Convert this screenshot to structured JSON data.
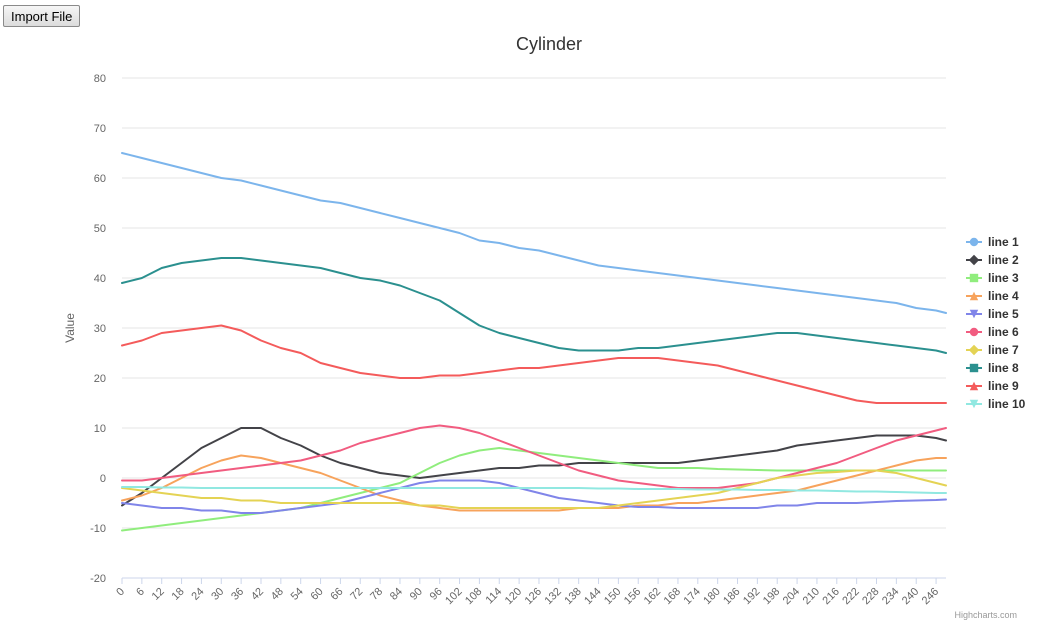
{
  "toolbar": {
    "import_label": "Import File"
  },
  "credits": "Highcharts.com",
  "chart_data": {
    "type": "line",
    "title": "Cylinder",
    "xlabel": "",
    "ylabel": "Value",
    "xlim": [
      0,
      249
    ],
    "ylim": [
      -20,
      80
    ],
    "yticks": [
      -20,
      -10,
      0,
      10,
      20,
      30,
      40,
      50,
      60,
      70,
      80
    ],
    "xticks": [
      0,
      6,
      12,
      18,
      24,
      30,
      36,
      42,
      48,
      54,
      60,
      66,
      72,
      78,
      84,
      90,
      96,
      102,
      108,
      114,
      120,
      126,
      132,
      138,
      144,
      150,
      156,
      162,
      168,
      174,
      180,
      186,
      192,
      198,
      204,
      210,
      216,
      222,
      228,
      234,
      240,
      246
    ],
    "grid": true,
    "legend": "right",
    "series": [
      {
        "name": "line 1",
        "color": "#7cb5ec",
        "marker": "circle",
        "x": [
          0,
          6,
          12,
          18,
          24,
          30,
          36,
          42,
          48,
          54,
          60,
          66,
          72,
          78,
          84,
          90,
          96,
          102,
          108,
          114,
          120,
          126,
          132,
          138,
          144,
          150,
          156,
          162,
          168,
          174,
          180,
          186,
          192,
          198,
          204,
          210,
          216,
          222,
          228,
          234,
          240,
          246,
          249
        ],
        "y": [
          65,
          64,
          63,
          62,
          61,
          60,
          59.5,
          58.5,
          57.5,
          56.5,
          55.5,
          55,
          54,
          53,
          52,
          51,
          50,
          49,
          47.5,
          47,
          46,
          45.5,
          44.5,
          43.5,
          42.5,
          42,
          41.5,
          41,
          40.5,
          40,
          39.5,
          39,
          38.5,
          38,
          37.5,
          37,
          36.5,
          36,
          35.5,
          35,
          34,
          33.5,
          33
        ]
      },
      {
        "name": "line 2",
        "color": "#434348",
        "marker": "diamond",
        "x": [
          0,
          6,
          12,
          18,
          24,
          30,
          36,
          42,
          48,
          54,
          60,
          66,
          72,
          78,
          84,
          90,
          96,
          102,
          108,
          114,
          120,
          126,
          132,
          138,
          144,
          150,
          156,
          162,
          168,
          174,
          180,
          186,
          192,
          198,
          204,
          210,
          216,
          222,
          228,
          234,
          240,
          246,
          249
        ],
        "y": [
          -5.5,
          -3,
          0,
          3,
          6,
          8,
          10,
          10,
          8,
          6.5,
          4.5,
          3,
          2,
          1,
          0.5,
          0,
          0.5,
          1,
          1.5,
          2,
          2,
          2.5,
          2.5,
          3,
          3,
          3,
          3,
          3,
          3,
          3.5,
          4,
          4.5,
          5,
          5.5,
          6.5,
          7,
          7.5,
          8,
          8.5,
          8.5,
          8.5,
          8,
          7.5
        ]
      },
      {
        "name": "line 3",
        "color": "#90ed7d",
        "marker": "square",
        "x": [
          0,
          6,
          12,
          18,
          24,
          30,
          36,
          42,
          48,
          54,
          60,
          66,
          72,
          78,
          84,
          90,
          96,
          102,
          108,
          114,
          120,
          126,
          132,
          138,
          144,
          150,
          156,
          162,
          168,
          174,
          180,
          186,
          192,
          198,
          204,
          210,
          216,
          222,
          228,
          234,
          240,
          246,
          249
        ],
        "y": [
          -10.5,
          -10,
          -9.5,
          -9,
          -8.5,
          -8,
          -7.5,
          -7,
          -6.5,
          -6,
          -5,
          -4,
          -3,
          -2,
          -1,
          1,
          3,
          4.5,
          5.5,
          6,
          5.5,
          5,
          4.5,
          4,
          3.5,
          3,
          2.5,
          2,
          2,
          2,
          1.8,
          1.7,
          1.6,
          1.5,
          1.5,
          1.5,
          1.5,
          1.5,
          1.5,
          1.5,
          1.5,
          1.5,
          1.5
        ]
      },
      {
        "name": "line 4",
        "color": "#f7a35c",
        "marker": "triangle",
        "x": [
          0,
          6,
          12,
          18,
          24,
          30,
          36,
          42,
          48,
          54,
          60,
          66,
          72,
          78,
          84,
          90,
          96,
          102,
          108,
          114,
          120,
          126,
          132,
          138,
          144,
          150,
          156,
          162,
          168,
          174,
          180,
          186,
          192,
          198,
          204,
          210,
          216,
          222,
          228,
          234,
          240,
          246,
          249
        ],
        "y": [
          -4.5,
          -3.5,
          -2,
          0,
          2,
          3.5,
          4.5,
          4,
          3,
          2,
          1,
          -0.5,
          -2,
          -3.5,
          -4.5,
          -5.5,
          -6,
          -6.5,
          -6.5,
          -6.5,
          -6.5,
          -6.5,
          -6.5,
          -6,
          -6,
          -6,
          -5.5,
          -5.5,
          -5,
          -5,
          -4.5,
          -4,
          -3.5,
          -3,
          -2.5,
          -1.5,
          -0.5,
          0.5,
          1.5,
          2.5,
          3.5,
          4,
          4
        ]
      },
      {
        "name": "line 5",
        "color": "#8085e9",
        "marker": "triangle-down",
        "x": [
          0,
          6,
          12,
          18,
          24,
          30,
          36,
          42,
          48,
          54,
          60,
          66,
          72,
          78,
          84,
          90,
          96,
          102,
          108,
          114,
          120,
          126,
          132,
          138,
          144,
          150,
          156,
          162,
          168,
          174,
          180,
          186,
          192,
          198,
          204,
          210,
          216,
          222,
          228,
          234,
          240,
          246,
          249
        ],
        "y": [
          -5,
          -5.5,
          -6,
          -6,
          -6.5,
          -6.5,
          -7,
          -7,
          -6.5,
          -6,
          -5.5,
          -5,
          -4,
          -3,
          -2,
          -1,
          -0.5,
          -0.5,
          -0.5,
          -1,
          -2,
          -3,
          -4,
          -4.5,
          -5,
          -5.5,
          -5.8,
          -5.8,
          -6,
          -6,
          -6,
          -6,
          -6,
          -5.5,
          -5.5,
          -5,
          -5,
          -5,
          -4.8,
          -4.6,
          -4.5,
          -4.4,
          -4.3
        ]
      },
      {
        "name": "line 6",
        "color": "#f15c80",
        "marker": "circle",
        "x": [
          0,
          6,
          12,
          18,
          24,
          30,
          36,
          42,
          48,
          54,
          60,
          66,
          72,
          78,
          84,
          90,
          96,
          102,
          108,
          114,
          120,
          126,
          132,
          138,
          144,
          150,
          156,
          162,
          168,
          174,
          180,
          186,
          192,
          198,
          204,
          210,
          216,
          222,
          228,
          234,
          240,
          246,
          249
        ],
        "y": [
          -0.5,
          -0.5,
          0,
          0.5,
          1,
          1.5,
          2,
          2.5,
          3,
          3.5,
          4.5,
          5.5,
          7,
          8,
          9,
          10,
          10.5,
          10,
          9,
          7.5,
          6,
          4.5,
          3,
          1.5,
          0.5,
          -0.5,
          -1,
          -1.5,
          -2,
          -2,
          -2,
          -1.5,
          -1,
          0,
          1,
          2,
          3,
          4.5,
          6,
          7.5,
          8.5,
          9.5,
          10
        ]
      },
      {
        "name": "line 7",
        "color": "#e4d354",
        "marker": "diamond",
        "x": [
          0,
          6,
          12,
          18,
          24,
          30,
          36,
          42,
          48,
          54,
          60,
          66,
          72,
          78,
          84,
          90,
          96,
          102,
          108,
          114,
          120,
          126,
          132,
          138,
          144,
          150,
          156,
          162,
          168,
          174,
          180,
          186,
          192,
          198,
          204,
          210,
          216,
          222,
          228,
          234,
          240,
          246,
          249
        ],
        "y": [
          -2,
          -2.5,
          -3,
          -3.5,
          -4,
          -4,
          -4.5,
          -4.5,
          -5,
          -5,
          -5,
          -5,
          -5,
          -5,
          -5,
          -5.5,
          -5.5,
          -6,
          -6,
          -6,
          -6,
          -6,
          -6,
          -6,
          -6,
          -5.5,
          -5,
          -4.5,
          -4,
          -3.5,
          -3,
          -2,
          -1,
          0,
          0.5,
          1,
          1.2,
          1.5,
          1.5,
          1,
          0,
          -1,
          -1.5
        ]
      },
      {
        "name": "line 8",
        "color": "#2b908f",
        "marker": "square",
        "x": [
          0,
          6,
          12,
          18,
          24,
          30,
          36,
          42,
          48,
          54,
          60,
          66,
          72,
          78,
          84,
          90,
          96,
          102,
          108,
          114,
          120,
          126,
          132,
          138,
          144,
          150,
          156,
          162,
          168,
          174,
          180,
          186,
          192,
          198,
          204,
          210,
          216,
          222,
          228,
          234,
          240,
          246,
          249
        ],
        "y": [
          39,
          40,
          42,
          43,
          43.5,
          44,
          44,
          43.5,
          43,
          42.5,
          42,
          41,
          40,
          39.5,
          38.5,
          37,
          35.5,
          33,
          30.5,
          29,
          28,
          27,
          26,
          25.5,
          25.5,
          25.5,
          26,
          26,
          26.5,
          27,
          27.5,
          28,
          28.5,
          29,
          29,
          28.5,
          28,
          27.5,
          27,
          26.5,
          26,
          25.5,
          25
        ]
      },
      {
        "name": "line 9",
        "color": "#f45b5b",
        "marker": "triangle",
        "x": [
          0,
          6,
          12,
          18,
          24,
          30,
          36,
          42,
          48,
          54,
          60,
          66,
          72,
          78,
          84,
          90,
          96,
          102,
          108,
          114,
          120,
          126,
          132,
          138,
          144,
          150,
          156,
          162,
          168,
          174,
          180,
          186,
          192,
          198,
          204,
          210,
          216,
          222,
          228,
          234,
          240,
          246,
          249
        ],
        "y": [
          26.5,
          27.5,
          29,
          29.5,
          30,
          30.5,
          29.5,
          27.5,
          26,
          25,
          23,
          22,
          21,
          20.5,
          20,
          20,
          20.5,
          20.5,
          21,
          21.5,
          22,
          22,
          22.5,
          23,
          23.5,
          24,
          24,
          24,
          23.5,
          23,
          22.5,
          21.5,
          20.5,
          19.5,
          18.5,
          17.5,
          16.5,
          15.5,
          15,
          15,
          15,
          15,
          15
        ]
      },
      {
        "name": "line 10",
        "color": "#91e8e1",
        "marker": "triangle-down",
        "x": [
          0,
          6,
          12,
          18,
          24,
          30,
          36,
          42,
          48,
          54,
          60,
          66,
          72,
          78,
          84,
          90,
          96,
          102,
          108,
          114,
          120,
          126,
          132,
          138,
          144,
          150,
          156,
          162,
          168,
          174,
          180,
          186,
          192,
          198,
          204,
          210,
          216,
          222,
          228,
          234,
          240,
          246,
          249
        ],
        "y": [
          -1.8,
          -1.8,
          -1.9,
          -1.9,
          -2,
          -2,
          -2,
          -2,
          -2,
          -2,
          -2,
          -2,
          -2,
          -2,
          -2,
          -2,
          -2,
          -2,
          -2,
          -2,
          -2,
          -2,
          -2,
          -2,
          -2.1,
          -2.1,
          -2.2,
          -2.2,
          -2.2,
          -2.3,
          -2.3,
          -2.3,
          -2.4,
          -2.4,
          -2.5,
          -2.5,
          -2.6,
          -2.7,
          -2.7,
          -2.8,
          -2.9,
          -3,
          -3
        ]
      }
    ]
  }
}
